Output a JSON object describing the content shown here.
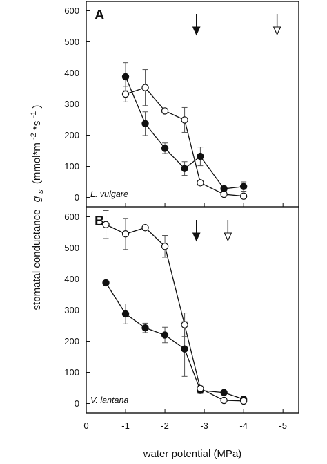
{
  "axis": {
    "ylabel_prefix": "stomatal conductance",
    "ylabel_symbol": "g",
    "ylabel_subscript": "s",
    "ylabel_units": "(mmol*m",
    "ylabel_exp1": "-2",
    "ylabel_mid": "*s",
    "ylabel_exp2": "-1",
    "ylabel_close": ")",
    "xlabel": "water potential (MPa)"
  },
  "chart_data": [
    {
      "type": "scatter",
      "panel": "A",
      "species": "L. vulgare",
      "x_reversed": true,
      "xlim": [
        0,
        -5.4
      ],
      "ylim": [
        -30,
        630
      ],
      "xticks": [
        0,
        -1,
        -2,
        -3,
        -4,
        -5
      ],
      "xtick_labels": [
        "0",
        "-1",
        "-2",
        "-3",
        "-4",
        "-5"
      ],
      "yticks": [
        0,
        100,
        200,
        300,
        400,
        500,
        600
      ],
      "series": [
        {
          "marker": "filled-circle",
          "points": [
            {
              "x": -1.0,
              "y": 388,
              "err": 45
            },
            {
              "x": -1.5,
              "y": 237,
              "err": 38
            },
            {
              "x": -2.0,
              "y": 158,
              "err": 17
            },
            {
              "x": -2.5,
              "y": 93,
              "err": 22
            },
            {
              "x": -2.9,
              "y": 132,
              "err": 30
            },
            {
              "x": -3.5,
              "y": 28,
              "err": 8
            },
            {
              "x": -4.0,
              "y": 35,
              "err": 15
            }
          ]
        },
        {
          "marker": "open-circle",
          "points": [
            {
              "x": -1.0,
              "y": 332,
              "err": 25
            },
            {
              "x": -1.5,
              "y": 353,
              "err": 58
            },
            {
              "x": -2.0,
              "y": 278,
              "err": 5
            },
            {
              "x": -2.5,
              "y": 249,
              "err": 40
            },
            {
              "x": -2.9,
              "y": 47,
              "err": 8
            },
            {
              "x": -3.5,
              "y": 10,
              "err": 3
            },
            {
              "x": -4.0,
              "y": 4,
              "err": 3
            }
          ]
        }
      ],
      "arrows": [
        {
          "x": -2.8,
          "style": "filled"
        },
        {
          "x": -4.85,
          "style": "open"
        }
      ]
    },
    {
      "type": "scatter",
      "panel": "B",
      "species": "V. lantana",
      "x_reversed": true,
      "xlim": [
        0,
        -5.4
      ],
      "ylim": [
        -30,
        630
      ],
      "xticks": [
        0,
        -1,
        -2,
        -3,
        -4,
        -5
      ],
      "xtick_labels": [
        "0",
        "-1",
        "-2",
        "-3",
        "-4",
        "-5"
      ],
      "yticks": [
        0,
        100,
        200,
        300,
        400,
        500,
        600
      ],
      "series": [
        {
          "marker": "filled-circle",
          "points": [
            {
              "x": -0.5,
              "y": 388,
              "err": 0
            },
            {
              "x": -1.0,
              "y": 288,
              "err": 32
            },
            {
              "x": -1.5,
              "y": 243,
              "err": 15
            },
            {
              "x": -2.0,
              "y": 220,
              "err": 25
            },
            {
              "x": -2.5,
              "y": 175,
              "err": 88
            },
            {
              "x": -2.9,
              "y": 42,
              "err": 10
            },
            {
              "x": -3.5,
              "y": 35,
              "err": 5
            },
            {
              "x": -4.0,
              "y": 14,
              "err": 5
            }
          ]
        },
        {
          "marker": "open-circle",
          "points": [
            {
              "x": -0.5,
              "y": 575,
              "err": 45
            },
            {
              "x": -1.0,
              "y": 545,
              "err": 50
            },
            {
              "x": -1.5,
              "y": 565,
              "err": 5
            },
            {
              "x": -2.0,
              "y": 505,
              "err": 35
            },
            {
              "x": -2.5,
              "y": 253,
              "err": 38
            },
            {
              "x": -2.9,
              "y": 48,
              "err": 8
            },
            {
              "x": -3.5,
              "y": 10,
              "err": 3
            },
            {
              "x": -4.0,
              "y": 8,
              "err": 3
            }
          ]
        }
      ],
      "arrows": [
        {
          "x": -2.8,
          "style": "filled"
        },
        {
          "x": -3.6,
          "style": "open"
        }
      ]
    }
  ]
}
